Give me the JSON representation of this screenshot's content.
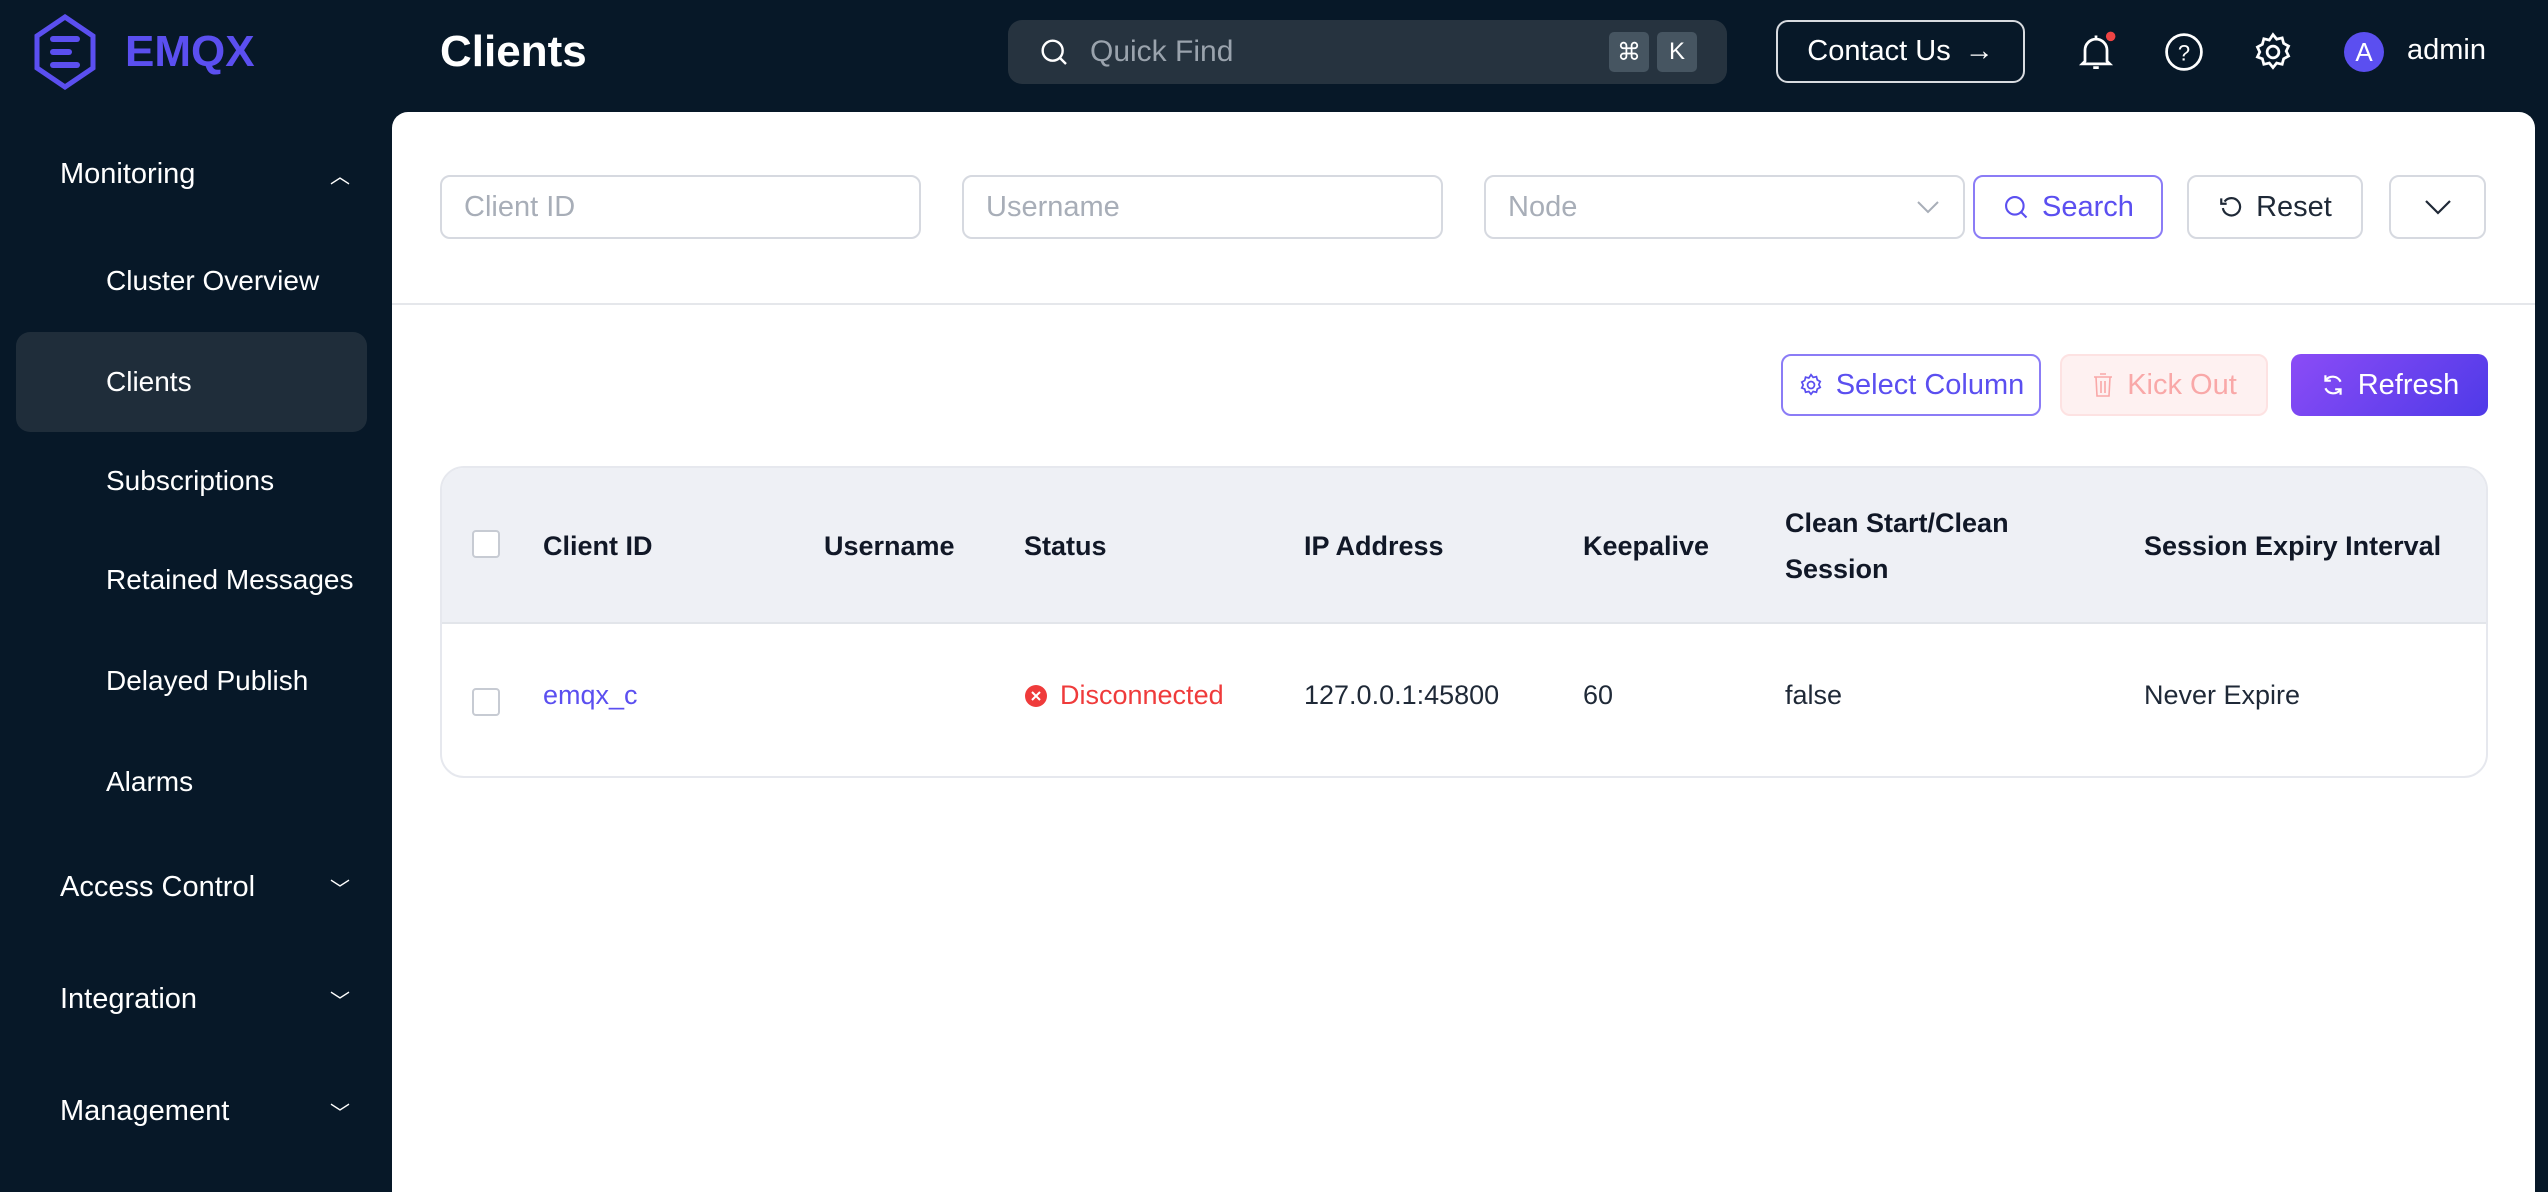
{
  "header": {
    "logo": "EMQX",
    "title": "Clients",
    "quick_find_placeholder": "Quick Find",
    "shortcut_keys": [
      "⌘",
      "K"
    ],
    "contact_label": "Contact Us",
    "contact_arrow": "→",
    "avatar_letter": "A",
    "username": "admin",
    "notification_dot_color": "#ef4444"
  },
  "sidebar": {
    "groups": [
      {
        "label": "Monitoring",
        "expanded": true,
        "items": [
          {
            "label": "Cluster Overview"
          },
          {
            "label": "Clients",
            "active": true
          },
          {
            "label": "Subscriptions"
          },
          {
            "label": "Retained Messages"
          },
          {
            "label": "Delayed Publish"
          },
          {
            "label": "Alarms"
          }
        ]
      },
      {
        "label": "Access Control",
        "expanded": false
      },
      {
        "label": "Integration",
        "expanded": false
      },
      {
        "label": "Management",
        "expanded": false
      }
    ]
  },
  "filters": {
    "client_id_placeholder": "Client ID",
    "username_placeholder": "Username",
    "node_placeholder": "Node",
    "search_label": "Search",
    "reset_label": "Reset"
  },
  "actions": {
    "select_column": "Select Column",
    "kick_out": "Kick Out",
    "refresh": "Refresh"
  },
  "table": {
    "columns": [
      "Client ID",
      "Username",
      "Status",
      "IP Address",
      "Keepalive",
      "Clean Start/Clean Session",
      "Session Expiry Interval"
    ],
    "rows": [
      {
        "client_id": "emqx_c",
        "username": "",
        "status": "Disconnected",
        "ip": "127.0.0.1:45800",
        "keepalive": "60",
        "clean": "false",
        "expiry": "Never Expire"
      }
    ]
  },
  "colors": {
    "accent": "#5b4ff0",
    "danger": "#ef3b3b",
    "sidebar_bg": "#071828"
  }
}
